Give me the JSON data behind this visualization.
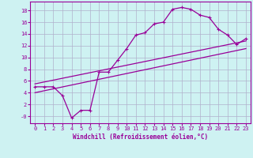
{
  "xlabel": "Windchill (Refroidissement éolien,°C)",
  "bg_color": "#cef2f2",
  "grid_color": "#b0b0cc",
  "line_color": "#990099",
  "xlim": [
    -0.5,
    23.5
  ],
  "ylim": [
    -1.2,
    19.5
  ],
  "xticks": [
    0,
    1,
    2,
    3,
    4,
    5,
    6,
    7,
    8,
    9,
    10,
    11,
    12,
    13,
    14,
    15,
    16,
    17,
    18,
    19,
    20,
    21,
    22,
    23
  ],
  "yticks": [
    0,
    2,
    4,
    6,
    8,
    10,
    12,
    14,
    16,
    18
  ],
  "ytick_labels": [
    "-0",
    "2",
    "4",
    "6",
    "8",
    "10",
    "12",
    "14",
    "16",
    "18"
  ],
  "line1_x": [
    0,
    1,
    2,
    3,
    4,
    5,
    6,
    7,
    8,
    9,
    10,
    11,
    12,
    13,
    14,
    15,
    16,
    17,
    18,
    19,
    20,
    21,
    22,
    23
  ],
  "line1_y": [
    5,
    5,
    5,
    3.5,
    -0.3,
    1.0,
    1.0,
    7.5,
    7.5,
    9.5,
    11.5,
    13.8,
    14.2,
    15.7,
    16.0,
    18.2,
    18.5,
    18.2,
    17.2,
    16.8,
    14.8,
    13.8,
    12.2,
    13.2
  ],
  "line2_x": [
    0,
    23
  ],
  "line2_y": [
    5.5,
    12.8
  ],
  "line3_x": [
    0,
    23
  ],
  "line3_y": [
    4.0,
    11.5
  ]
}
